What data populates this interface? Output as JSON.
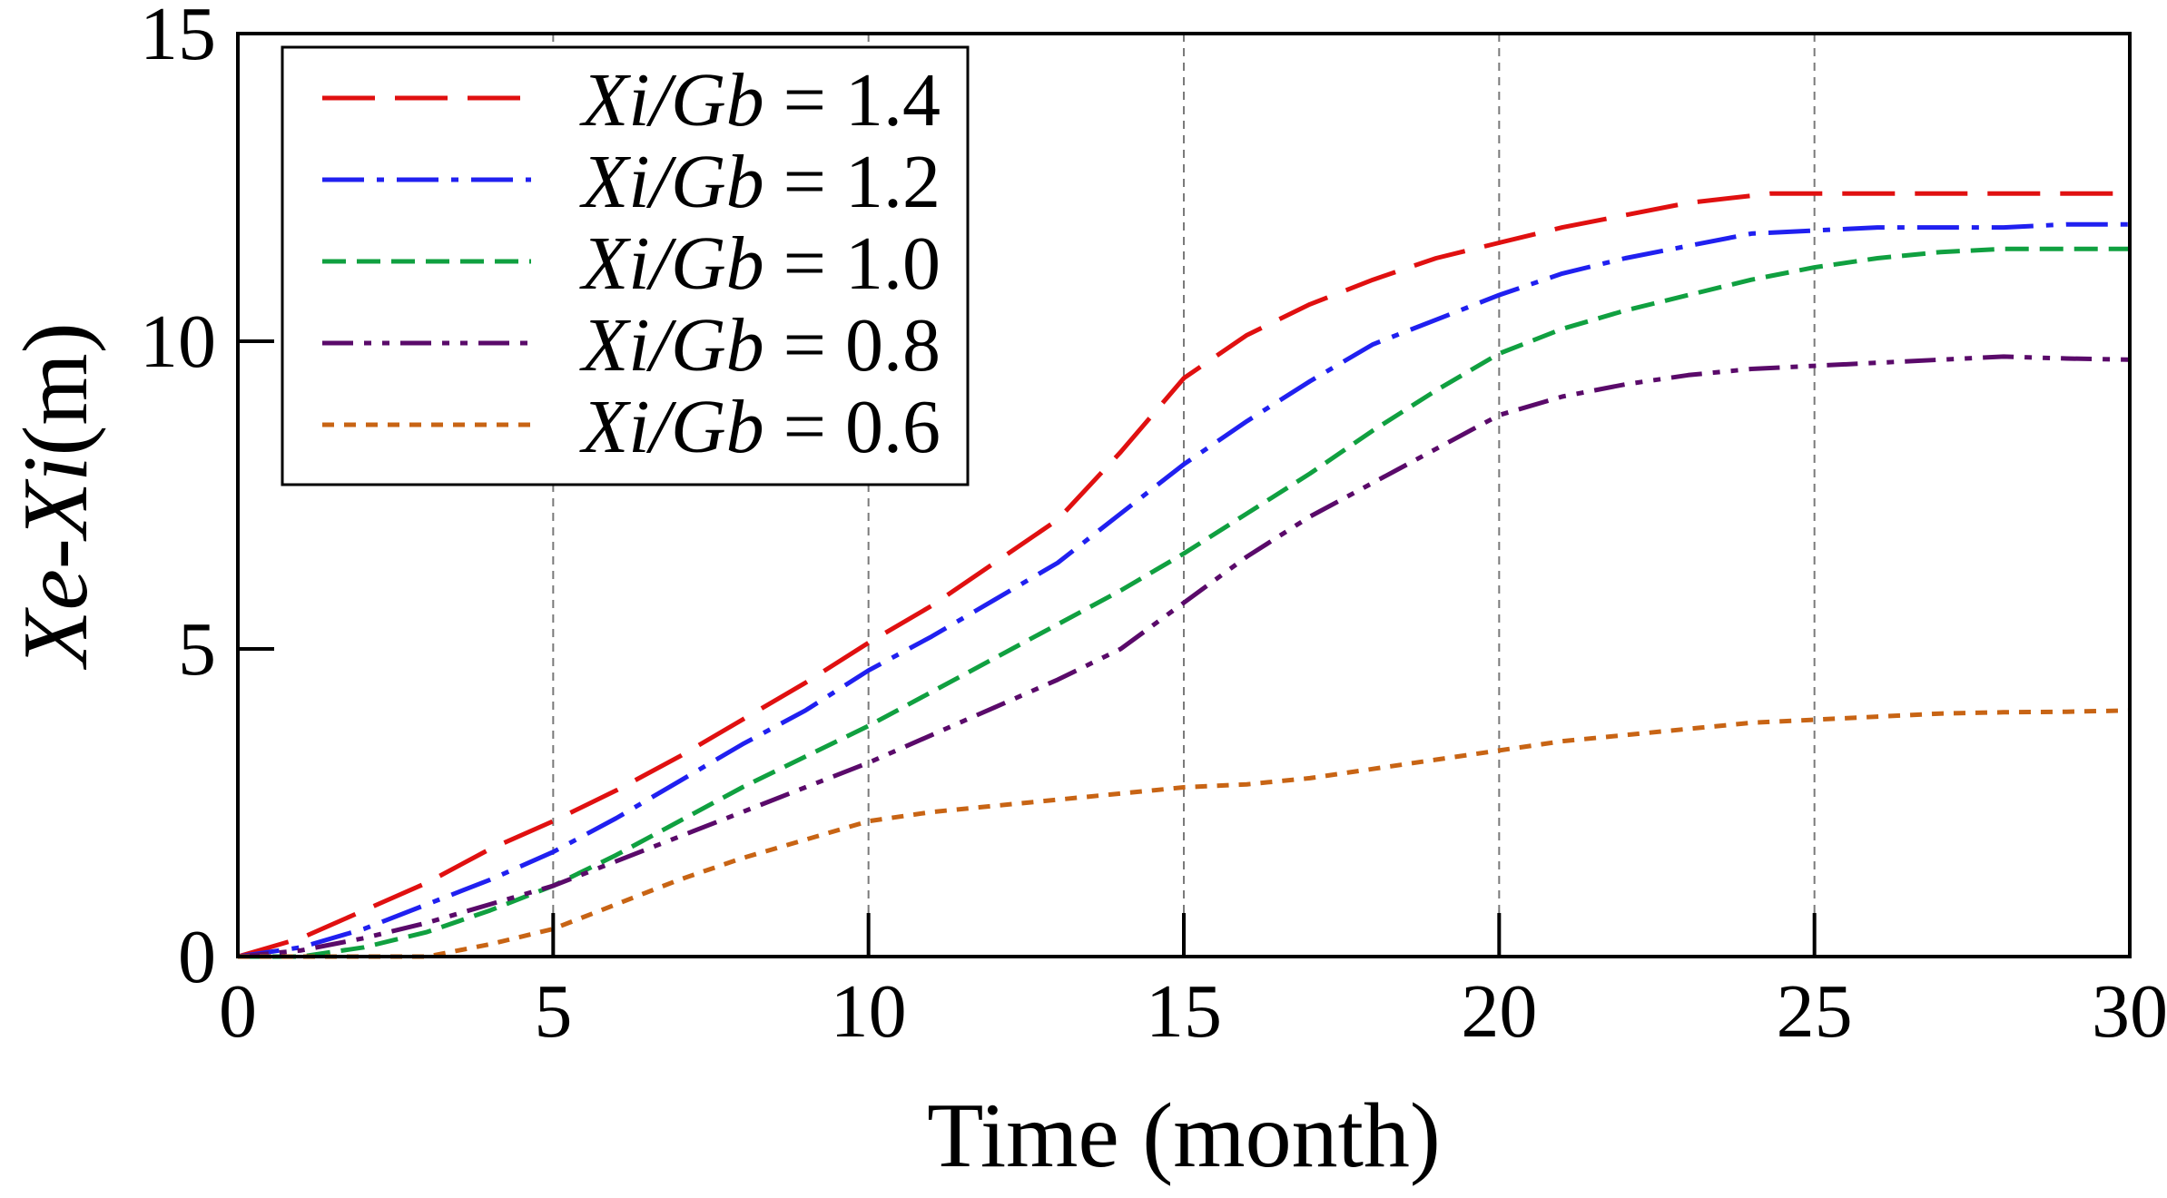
{
  "chart_data": {
    "type": "line",
    "title": "",
    "xlabel": "Time (month)",
    "ylabel": {
      "italic": "Xe-Xi",
      "unit": "(m)"
    },
    "xlim": [
      0,
      30
    ],
    "ylim": [
      0,
      15
    ],
    "xticks": [
      0,
      5,
      10,
      15,
      20,
      25,
      30
    ],
    "xtick_labels": [
      "0",
      "5",
      "10",
      "15",
      "20",
      "25",
      "30"
    ],
    "yticks": [
      0,
      5,
      10,
      15
    ],
    "ytick_labels": [
      "0",
      "5",
      "10",
      "15"
    ],
    "grid": "vertical-dashed",
    "legend_position": "top-left",
    "series": [
      {
        "name": "Xi/Gb = 1.4",
        "label_italic": "Xi/Gb",
        "label_value": "= 1.4",
        "color": "#e01010",
        "style": "long-dash",
        "x": [
          0,
          1,
          2,
          3,
          4,
          5,
          6,
          7,
          8,
          9,
          10,
          11,
          12,
          13,
          14,
          15,
          16,
          17,
          18,
          19,
          20,
          21,
          22,
          23,
          24.3,
          25,
          26,
          27,
          28,
          29,
          30
        ],
        "y": [
          0,
          0.3,
          0.75,
          1.2,
          1.75,
          2.2,
          2.7,
          3.25,
          3.85,
          4.45,
          5.1,
          5.7,
          6.4,
          7.1,
          8.2,
          9.4,
          10.1,
          10.6,
          11.0,
          11.35,
          11.6,
          11.85,
          12.05,
          12.25,
          12.4,
          12.4,
          12.4,
          12.4,
          12.4,
          12.4,
          12.4
        ]
      },
      {
        "name": "Xi/Gb = 1.2",
        "label_italic": "Xi/Gb",
        "label_value": "= 1.2",
        "color": "#2020f0",
        "style": "dash-dot",
        "x": [
          0,
          1,
          2,
          3,
          4,
          5,
          6,
          7,
          8,
          9,
          10,
          11,
          12,
          13,
          14,
          15,
          16,
          17,
          18,
          19,
          20,
          21,
          22,
          23,
          24,
          25,
          26,
          27,
          28,
          29,
          30
        ],
        "y": [
          0,
          0.15,
          0.45,
          0.85,
          1.25,
          1.7,
          2.25,
          2.85,
          3.45,
          4.0,
          4.65,
          5.2,
          5.8,
          6.4,
          7.2,
          8.0,
          8.7,
          9.35,
          9.95,
          10.35,
          10.75,
          11.1,
          11.35,
          11.55,
          11.75,
          11.8,
          11.85,
          11.85,
          11.85,
          11.9,
          11.9
        ]
      },
      {
        "name": "Xi/Gb = 1.0",
        "label_italic": "Xi/Gb",
        "label_value": "= 1.0",
        "color": "#10a040",
        "style": "dash",
        "x": [
          0,
          1,
          2,
          3,
          4,
          5,
          6,
          7,
          8,
          9,
          10,
          11,
          12,
          13,
          14,
          15,
          16,
          17,
          18,
          19,
          20,
          21,
          22,
          23,
          24,
          25,
          26,
          27,
          28,
          29,
          30
        ],
        "y": [
          0,
          0.0,
          0.15,
          0.4,
          0.75,
          1.15,
          1.65,
          2.2,
          2.75,
          3.25,
          3.75,
          4.3,
          4.85,
          5.4,
          5.95,
          6.55,
          7.2,
          7.85,
          8.55,
          9.2,
          9.8,
          10.2,
          10.5,
          10.75,
          11.0,
          11.2,
          11.35,
          11.45,
          11.5,
          11.5,
          11.5
        ]
      },
      {
        "name": "Xi/Gb = 0.8",
        "label_italic": "Xi/Gb",
        "label_value": "= 0.8",
        "color": "#5a0a6a",
        "style": "dash-dot-dot",
        "x": [
          0,
          1,
          2,
          3,
          4,
          5,
          6,
          7,
          8,
          9,
          10,
          11,
          12,
          13,
          14,
          15,
          16,
          17,
          18,
          19,
          20,
          21,
          22,
          23,
          24,
          25,
          26,
          27,
          28,
          29,
          30
        ],
        "y": [
          0,
          0.1,
          0.3,
          0.55,
          0.85,
          1.15,
          1.55,
          1.95,
          2.35,
          2.75,
          3.15,
          3.6,
          4.05,
          4.5,
          5.0,
          5.75,
          6.5,
          7.15,
          7.7,
          8.25,
          8.8,
          9.1,
          9.3,
          9.45,
          9.55,
          9.6,
          9.65,
          9.7,
          9.75,
          9.72,
          9.7
        ]
      },
      {
        "name": "Xi/Gb = 0.6",
        "label_italic": "Xi/Gb",
        "label_value": "= 0.6",
        "color": "#c86414",
        "style": "short-dash",
        "x": [
          0,
          1,
          2,
          3,
          4,
          5,
          6,
          7,
          8,
          9,
          10,
          11,
          12,
          13,
          14,
          15,
          16,
          17,
          18,
          19,
          20,
          21,
          22,
          23,
          24,
          25,
          26,
          27,
          28,
          29,
          30
        ],
        "y": [
          0,
          0,
          0,
          0.0,
          0.2,
          0.45,
          0.85,
          1.25,
          1.6,
          1.9,
          2.2,
          2.35,
          2.45,
          2.55,
          2.65,
          2.75,
          2.8,
          2.9,
          3.05,
          3.2,
          3.35,
          3.5,
          3.6,
          3.7,
          3.8,
          3.85,
          3.9,
          3.95,
          3.97,
          3.98,
          4.0
        ]
      }
    ]
  }
}
